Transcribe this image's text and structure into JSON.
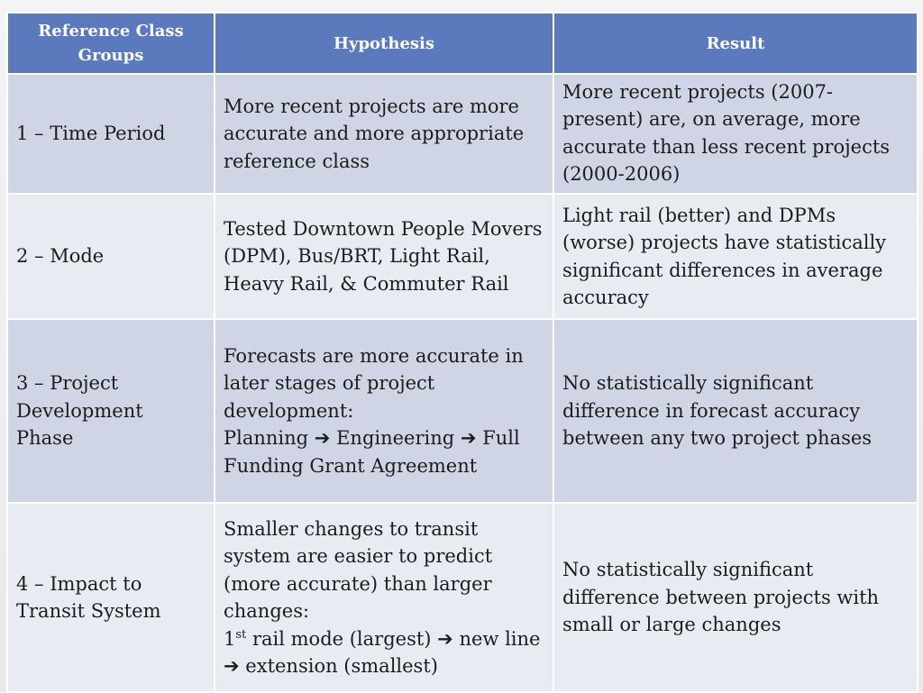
{
  "table": {
    "headers": [
      "Reference Class Groups",
      "Hypothesis",
      "Result"
    ],
    "rows": [
      {
        "group": "1 – Time Period",
        "hypothesis": "More recent projects are more accurate and more appropriate reference class",
        "result": "More recent projects (2007-present) are, on average, more accurate than less recent projects (2000-2006)"
      },
      {
        "group": "2 – Mode",
        "hypothesis": "Tested Downtown People Movers (DPM), Bus/BRT, Light Rail, Heavy Rail, & Commuter Rail",
        "result": "Light rail (better) and DPMs (worse) projects have statistically significant differences in average accuracy"
      },
      {
        "group": "3 – Project Development Phase",
        "hypothesis_intro": "Forecasts are more accurate in later stages of project development:",
        "hypothesis_steps": [
          "Planning",
          "Engineering",
          "Full Funding Grant Agreement"
        ],
        "result": "No statistically significant difference in forecast accuracy between any two project phases"
      },
      {
        "group": "4 – Impact to Transit System",
        "hypothesis_intro": "Smaller changes to transit system are easier to predict (more accurate) than larger changes:",
        "hypothesis_step1_num": "1",
        "hypothesis_step1_sup": "st",
        "hypothesis_step1_rest": "rail mode (largest)",
        "hypothesis_step2": "new line",
        "hypothesis_step3": "extension (smallest)",
        "result": "No statistically significant difference between projects with small or large changes"
      }
    ],
    "arrow_glyph": "➔"
  }
}
